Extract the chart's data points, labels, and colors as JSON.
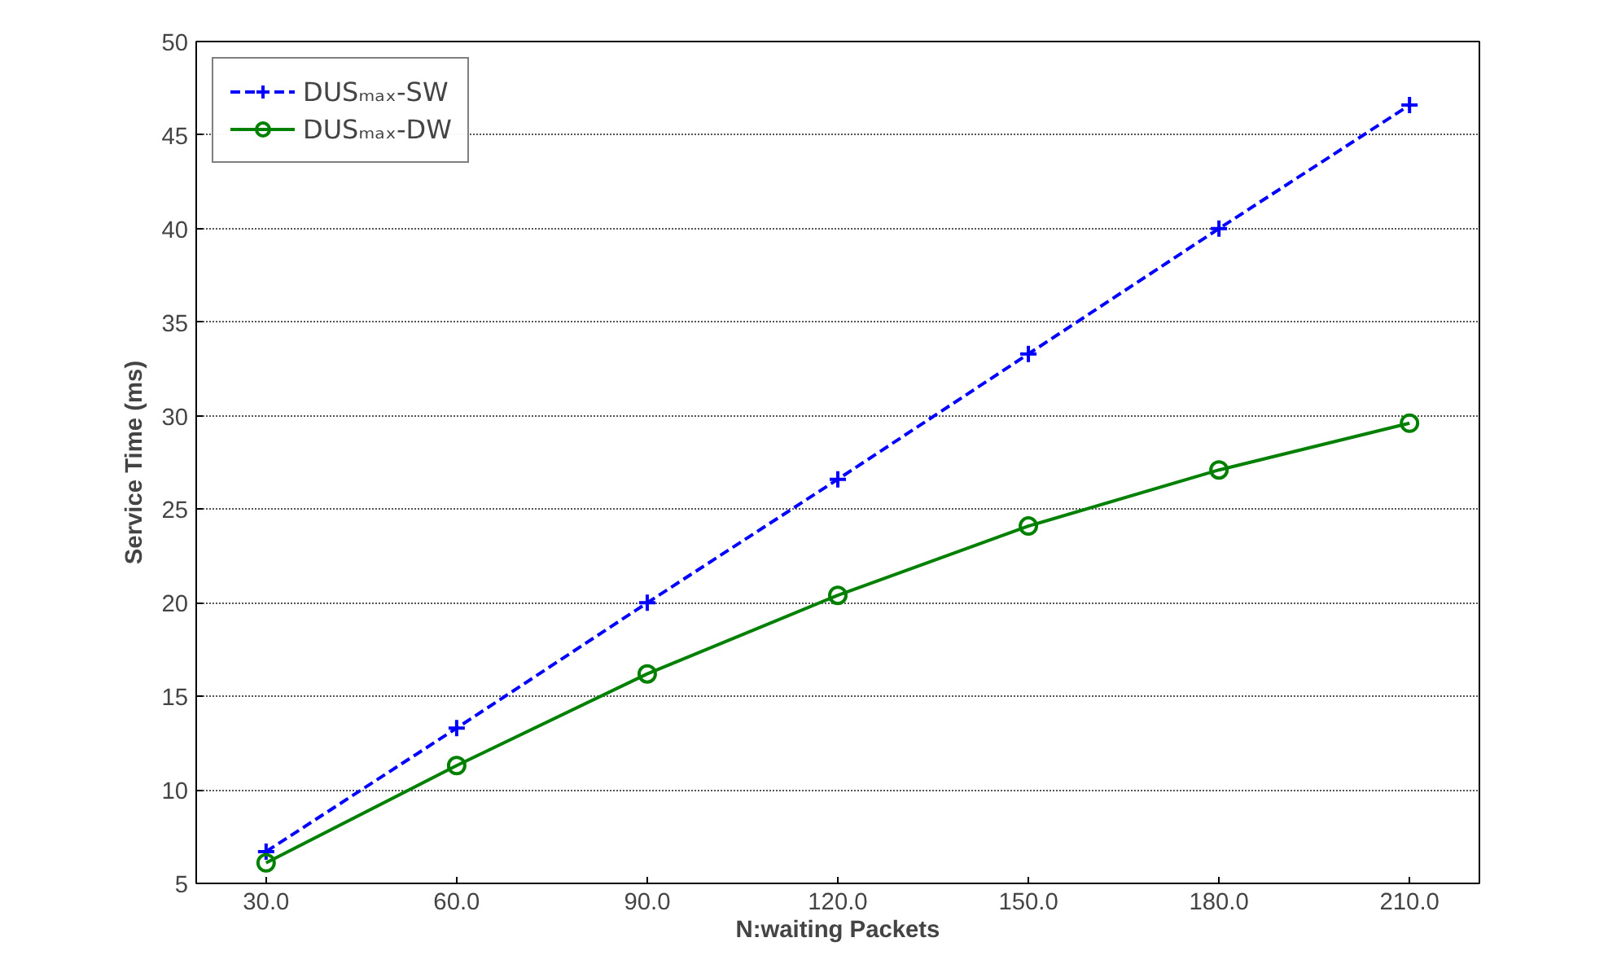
{
  "chart_data": {
    "type": "line",
    "xlabel": "N:waiting Packets",
    "ylabel": "Service Time (ms)",
    "x": [
      30,
      60,
      90,
      120,
      150,
      180,
      210
    ],
    "xlim": [
      19,
      221
    ],
    "xticks": [
      {
        "value": 30,
        "label": "30.0"
      },
      {
        "value": 60,
        "label": "60.0"
      },
      {
        "value": 90,
        "label": "90.0"
      },
      {
        "value": 120,
        "label": "120.0"
      },
      {
        "value": 150,
        "label": "150.0"
      },
      {
        "value": 180,
        "label": "180.0"
      },
      {
        "value": 210,
        "label": "210.0"
      }
    ],
    "ylim": [
      5,
      50
    ],
    "yticks": [
      5,
      10,
      15,
      20,
      25,
      30,
      35,
      40,
      45,
      50
    ],
    "grid": "y",
    "legend": "top left",
    "series": [
      {
        "name": "DUSₘₐₓ-SW",
        "color": "#0000ff",
        "values": [
          6.7,
          13.3,
          20.0,
          26.6,
          33.3,
          40.0,
          46.6
        ],
        "marker": "cross",
        "line_style": "dashed"
      },
      {
        "name": "DUSₘₐₓ-DW",
        "color": "#008000",
        "values": [
          6.1,
          11.3,
          16.2,
          20.4,
          24.1,
          27.1,
          29.6
        ],
        "marker": "circle",
        "line_style": "solid"
      }
    ]
  }
}
